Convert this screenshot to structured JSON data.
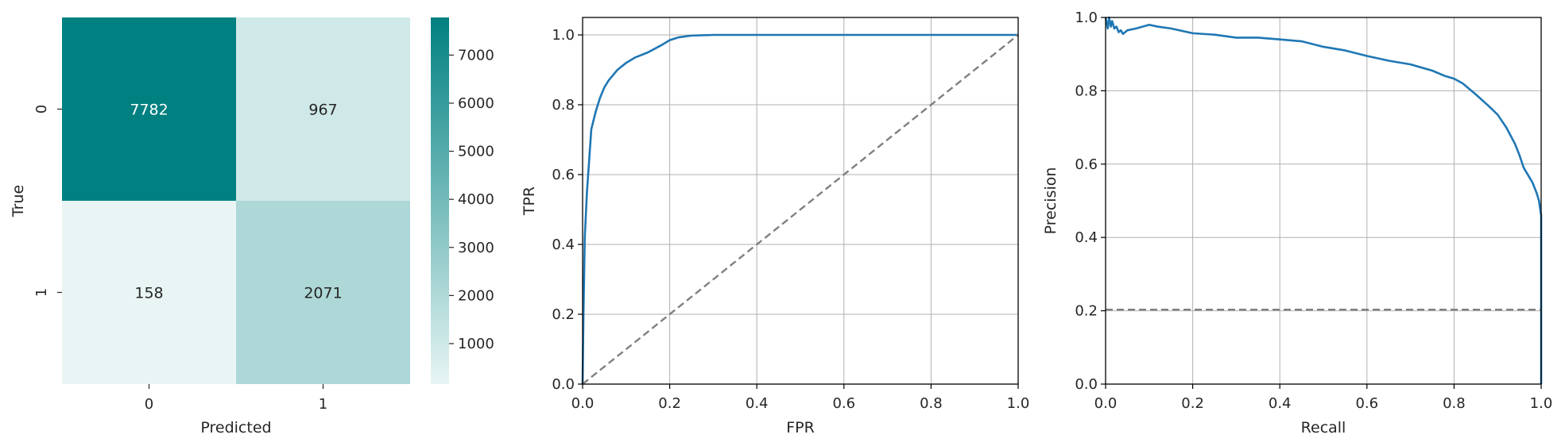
{
  "chart_data": [
    {
      "type": "heatmap",
      "xlabel": "Predicted",
      "ylabel": "True",
      "x_categories": [
        "0",
        "1"
      ],
      "y_categories": [
        "0",
        "1"
      ],
      "values": [
        [
          7782,
          967
        ],
        [
          158,
          2071
        ]
      ],
      "cell_text": [
        [
          "7782",
          "967"
        ],
        [
          "158",
          "2071"
        ]
      ],
      "colormap": [
        "#e8f5f4",
        "#008080"
      ],
      "colorbar_ticks": [
        1000,
        2000,
        3000,
        4000,
        5000,
        6000,
        7000
      ],
      "colorbar_tick_labels": [
        "1000",
        "2000",
        "3000",
        "4000",
        "5000",
        "6000",
        "7000"
      ],
      "colorbar_range": [
        158,
        7782
      ]
    },
    {
      "type": "line",
      "xlabel": "FPR",
      "ylabel": "TPR",
      "xlim": [
        0,
        1
      ],
      "ylim": [
        0,
        1.05
      ],
      "x_ticks": [
        0.0,
        0.2,
        0.4,
        0.6,
        0.8,
        1.0
      ],
      "x_tick_labels": [
        "0.0",
        "0.2",
        "0.4",
        "0.6",
        "0.8",
        "1.0"
      ],
      "y_ticks": [
        0.0,
        0.2,
        0.4,
        0.6,
        0.8,
        1.0
      ],
      "y_tick_labels": [
        "0.0",
        "0.2",
        "0.4",
        "0.6",
        "0.8",
        "1.0"
      ],
      "grid": true,
      "series": [
        {
          "color": "#1f77b4",
          "style": "solid",
          "x": [
            0,
            0.002,
            0.005,
            0.01,
            0.015,
            0.02,
            0.03,
            0.04,
            0.05,
            0.06,
            0.08,
            0.1,
            0.12,
            0.15,
            0.18,
            0.2,
            0.22,
            0.25,
            0.3,
            0.4,
            0.6,
            0.8,
            1.0
          ],
          "y": [
            0,
            0.2,
            0.42,
            0.55,
            0.64,
            0.73,
            0.78,
            0.82,
            0.85,
            0.87,
            0.9,
            0.92,
            0.935,
            0.95,
            0.97,
            0.985,
            0.993,
            0.998,
            1.0,
            1.0,
            1.0,
            1.0,
            1.0
          ]
        },
        {
          "color": "#808080",
          "style": "dashed",
          "x": [
            0,
            1
          ],
          "y": [
            0,
            1
          ]
        }
      ]
    },
    {
      "type": "line",
      "xlabel": "Recall",
      "ylabel": "Precision",
      "xlim": [
        0,
        1
      ],
      "ylim": [
        0,
        1
      ],
      "x_ticks": [
        0.0,
        0.2,
        0.4,
        0.6,
        0.8,
        1.0
      ],
      "x_tick_labels": [
        "0.0",
        "0.2",
        "0.4",
        "0.6",
        "0.8",
        "1.0"
      ],
      "y_ticks": [
        0.0,
        0.2,
        0.4,
        0.6,
        0.8,
        1.0
      ],
      "y_tick_labels": [
        "0.0",
        "0.2",
        "0.4",
        "0.6",
        "0.8",
        "1.0"
      ],
      "grid": true,
      "series": [
        {
          "color": "#1f77b4",
          "style": "solid",
          "x": [
            0.0,
            0.005,
            0.008,
            0.012,
            0.015,
            0.02,
            0.025,
            0.03,
            0.035,
            0.04,
            0.05,
            0.07,
            0.1,
            0.12,
            0.15,
            0.2,
            0.25,
            0.3,
            0.35,
            0.4,
            0.45,
            0.5,
            0.55,
            0.6,
            0.65,
            0.7,
            0.75,
            0.78,
            0.8,
            0.82,
            0.85,
            0.88,
            0.9,
            0.92,
            0.94,
            0.95,
            0.96,
            0.97,
            0.98,
            0.99,
            0.995,
            1.0,
            1.0
          ],
          "y": [
            1.0,
            0.97,
            1.0,
            0.975,
            0.99,
            0.97,
            0.975,
            0.96,
            0.965,
            0.955,
            0.965,
            0.97,
            0.98,
            0.975,
            0.97,
            0.957,
            0.953,
            0.945,
            0.945,
            0.94,
            0.935,
            0.92,
            0.91,
            0.895,
            0.882,
            0.872,
            0.855,
            0.84,
            0.833,
            0.82,
            0.79,
            0.758,
            0.735,
            0.7,
            0.655,
            0.625,
            0.59,
            0.57,
            0.55,
            0.52,
            0.5,
            0.46,
            0.0
          ]
        },
        {
          "color": "#808080",
          "style": "dashed",
          "x": [
            0,
            1
          ],
          "y": [
            0.203,
            0.203
          ]
        }
      ]
    }
  ]
}
